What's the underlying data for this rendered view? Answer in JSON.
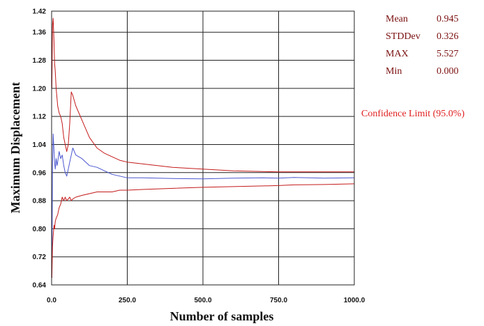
{
  "chart_data": {
    "type": "line",
    "xlabel": "Number of samples",
    "ylabel": "Maximum Displacement",
    "xlim": [
      0,
      1000
    ],
    "ylim": [
      0.64,
      1.42
    ],
    "grid": true,
    "x_ticks": [
      "0.0",
      "250.0",
      "500.0",
      "750.0",
      "1000.0"
    ],
    "y_ticks": [
      "0.64",
      "0.72",
      "0.80",
      "0.88",
      "0.96",
      "1.04",
      "1.12",
      "1.20",
      "1.28",
      "1.36",
      "1.42"
    ],
    "series": [
      {
        "color": "#4a56d0",
        "x": [
          1,
          3,
          5,
          8,
          10,
          12,
          15,
          18,
          20,
          25,
          30,
          35,
          40,
          45,
          50,
          55,
          60,
          70,
          80,
          100,
          125,
          150,
          175,
          200,
          225,
          250,
          300,
          400,
          500,
          600,
          700,
          750,
          800,
          900,
          1000
        ],
        "y": [
          0.66,
          0.98,
          1.07,
          1.02,
          0.99,
          0.97,
          1.0,
          0.98,
          0.99,
          1.02,
          1.0,
          1.01,
          0.98,
          0.96,
          0.95,
          0.97,
          0.99,
          1.03,
          1.01,
          1.0,
          0.98,
          0.975,
          0.965,
          0.955,
          0.95,
          0.945,
          0.945,
          0.943,
          0.942,
          0.944,
          0.945,
          0.944,
          0.946,
          0.944,
          0.945
        ]
      },
      {
        "color": "#c41a1a",
        "x": [
          1,
          3,
          5,
          8,
          10,
          12,
          15,
          20,
          25,
          30,
          35,
          40,
          45,
          50,
          55,
          60,
          65,
          70,
          80,
          100,
          125,
          150,
          175,
          200,
          225,
          250,
          300,
          400,
          500,
          600,
          700,
          750,
          800,
          900,
          1000
        ],
        "y": [
          1.2,
          1.38,
          1.4,
          1.33,
          1.27,
          1.25,
          1.2,
          1.15,
          1.13,
          1.12,
          1.1,
          1.06,
          1.04,
          1.02,
          1.04,
          1.1,
          1.19,
          1.18,
          1.15,
          1.11,
          1.06,
          1.03,
          1.015,
          1.005,
          0.995,
          0.99,
          0.985,
          0.975,
          0.97,
          0.965,
          0.963,
          0.962,
          0.962,
          0.962,
          0.962
        ]
      },
      {
        "color": "#c41a1a",
        "x": [
          1,
          3,
          5,
          8,
          10,
          12,
          15,
          20,
          25,
          30,
          35,
          40,
          45,
          50,
          55,
          60,
          65,
          70,
          80,
          100,
          125,
          150,
          175,
          200,
          225,
          250,
          300,
          400,
          500,
          600,
          700,
          750,
          800,
          900,
          1000
        ],
        "y": [
          0.66,
          0.75,
          0.78,
          0.81,
          0.8,
          0.82,
          0.83,
          0.84,
          0.86,
          0.87,
          0.89,
          0.88,
          0.89,
          0.88,
          0.885,
          0.89,
          0.88,
          0.885,
          0.89,
          0.895,
          0.9,
          0.905,
          0.905,
          0.905,
          0.91,
          0.91,
          0.912,
          0.915,
          0.918,
          0.92,
          0.922,
          0.923,
          0.925,
          0.926,
          0.928
        ]
      }
    ]
  },
  "stats": [
    {
      "label": "Mean",
      "value": "0.945"
    },
    {
      "label": "STDDev",
      "value": "0.326"
    },
    {
      "label": "MAX",
      "value": "5.527"
    },
    {
      "label": "Min",
      "value": "0.000"
    }
  ],
  "confidence_label": "Confidence Limit (95.0%)"
}
